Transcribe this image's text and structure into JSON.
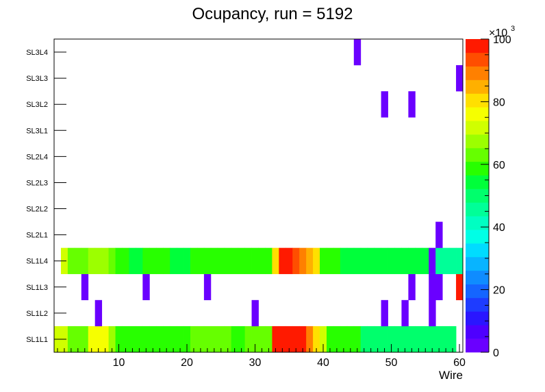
{
  "chart_data": {
    "type": "heatmap",
    "title": "Ocupancy, run = 5192",
    "xlabel": "Wire",
    "ylabel": "",
    "xlim": [
      0.5,
      60.5
    ],
    "x_ticks": [
      10,
      20,
      30,
      40,
      50,
      60
    ],
    "y_categories": [
      "SL1L1",
      "SL1L2",
      "SL1L3",
      "SL1L4",
      "SL2L1",
      "SL2L2",
      "SL2L3",
      "SL2L4",
      "SL3L1",
      "SL3L2",
      "SL3L3",
      "SL3L4"
    ],
    "z_range": [
      0,
      100000
    ],
    "z_exponent_label": "×10",
    "z_exponent_power": "3",
    "z_ticks": [
      0,
      20,
      40,
      60,
      80,
      100
    ],
    "palette": [
      "#6a00ff",
      "#4e00ff",
      "#2a16ff",
      "#1e3cff",
      "#1565ff",
      "#0f8cff",
      "#08b4ff",
      "#00dcff",
      "#00ffe6",
      "#00ffc2",
      "#00ff98",
      "#00ff6c",
      "#00ff3a",
      "#28ff00",
      "#66ff00",
      "#9cff00",
      "#d0ff00",
      "#f6ff00",
      "#ffe000",
      "#ffb000",
      "#ff8000",
      "#ff4e00",
      "#ff1a00"
    ],
    "rows": [
      {
        "layer": "SL1L1",
        "values": [
          70000,
          70000,
          63000,
          63000,
          63000,
          75000,
          75000,
          75000,
          66000,
          59000,
          57000,
          57000,
          57000,
          59000,
          59000,
          57000,
          57000,
          60000,
          60000,
          60000,
          65000,
          65000,
          65000,
          65000,
          65000,
          65000,
          60000,
          60000,
          65000,
          65000,
          65000,
          65000,
          100000,
          100000,
          100000,
          100000,
          96000,
          90000,
          82000,
          70000,
          60000,
          60000,
          60000,
          60000,
          60000,
          52000,
          52000,
          52000,
          52000,
          52000,
          52000,
          52000,
          48000,
          48000,
          48000,
          48000,
          48000,
          48000,
          48000,
          0
        ]
      },
      {
        "layer": "SL1L2",
        "values": [
          0,
          0,
          0,
          0,
          0,
          0,
          1000,
          0,
          0,
          0,
          0,
          0,
          0,
          0,
          0,
          0,
          0,
          0,
          0,
          0,
          0,
          0,
          0,
          0,
          0,
          0,
          0,
          0,
          0,
          1000,
          0,
          0,
          0,
          0,
          0,
          0,
          0,
          0,
          0,
          0,
          0,
          0,
          0,
          0,
          0,
          0,
          0,
          0,
          1000,
          0,
          0,
          1000,
          0,
          0,
          0,
          1000,
          0,
          0,
          0,
          0
        ]
      },
      {
        "layer": "SL1L3",
        "values": [
          0,
          0,
          0,
          0,
          1000,
          0,
          0,
          0,
          0,
          0,
          0,
          0,
          0,
          1000,
          0,
          0,
          0,
          0,
          0,
          0,
          0,
          0,
          1000,
          0,
          0,
          0,
          0,
          0,
          0,
          0,
          0,
          0,
          0,
          0,
          0,
          0,
          0,
          0,
          0,
          0,
          0,
          0,
          0,
          0,
          0,
          0,
          0,
          0,
          0,
          0,
          0,
          0,
          1000,
          0,
          0,
          1000,
          1000,
          0,
          0,
          100000
        ]
      },
      {
        "layer": "SL1L4",
        "values": [
          0,
          70000,
          63000,
          63000,
          63000,
          68000,
          68000,
          68000,
          63000,
          60000,
          60000,
          56000,
          56000,
          60000,
          60000,
          60000,
          60000,
          56000,
          56000,
          56000,
          60000,
          60000,
          60000,
          59000,
          59000,
          59000,
          59000,
          60000,
          60000,
          60000,
          60000,
          60000,
          80000,
          100000,
          100000,
          95000,
          90000,
          86000,
          79000,
          60000,
          60000,
          60000,
          55000,
          55000,
          55000,
          55000,
          53000,
          53000,
          53000,
          53000,
          53000,
          53000,
          53000,
          53000,
          53000,
          1000,
          47000,
          47000,
          47000,
          47000
        ]
      },
      {
        "layer": "SL2L1",
        "values": [
          0,
          0,
          0,
          0,
          0,
          0,
          0,
          0,
          0,
          0,
          0,
          0,
          0,
          0,
          0,
          0,
          0,
          0,
          0,
          0,
          0,
          0,
          0,
          0,
          0,
          0,
          0,
          0,
          0,
          0,
          0,
          0,
          0,
          0,
          0,
          0,
          0,
          0,
          0,
          0,
          0,
          0,
          0,
          0,
          0,
          0,
          0,
          0,
          0,
          0,
          0,
          0,
          0,
          0,
          0,
          0,
          1000,
          0,
          0,
          0
        ]
      },
      {
        "layer": "SL2L2",
        "values": [
          0,
          0,
          0,
          0,
          0,
          0,
          0,
          0,
          0,
          0,
          0,
          0,
          0,
          0,
          0,
          0,
          0,
          0,
          0,
          0,
          0,
          0,
          0,
          0,
          0,
          0,
          0,
          0,
          0,
          0,
          0,
          0,
          0,
          0,
          0,
          0,
          0,
          0,
          0,
          0,
          0,
          0,
          0,
          0,
          0,
          0,
          0,
          0,
          0,
          0,
          0,
          0,
          0,
          0,
          0,
          0,
          0,
          0,
          0,
          0
        ]
      },
      {
        "layer": "SL2L3",
        "values": [
          0,
          0,
          0,
          0,
          0,
          0,
          0,
          0,
          0,
          0,
          0,
          0,
          0,
          0,
          0,
          0,
          0,
          0,
          0,
          0,
          0,
          0,
          0,
          0,
          0,
          0,
          0,
          0,
          0,
          0,
          0,
          0,
          0,
          0,
          0,
          0,
          0,
          0,
          0,
          0,
          0,
          0,
          0,
          0,
          0,
          0,
          0,
          0,
          0,
          0,
          0,
          0,
          0,
          0,
          0,
          0,
          0,
          0,
          0,
          0
        ]
      },
      {
        "layer": "SL2L4",
        "values": [
          0,
          0,
          0,
          0,
          0,
          0,
          0,
          0,
          0,
          0,
          0,
          0,
          0,
          0,
          0,
          0,
          0,
          0,
          0,
          0,
          0,
          0,
          0,
          0,
          0,
          0,
          0,
          0,
          0,
          0,
          0,
          0,
          0,
          0,
          0,
          0,
          0,
          0,
          0,
          0,
          0,
          0,
          0,
          0,
          0,
          0,
          0,
          0,
          0,
          0,
          0,
          0,
          0,
          0,
          0,
          0,
          0,
          0,
          0,
          0
        ]
      },
      {
        "layer": "SL3L1",
        "values": [
          0,
          0,
          0,
          0,
          0,
          0,
          0,
          0,
          0,
          0,
          0,
          0,
          0,
          0,
          0,
          0,
          0,
          0,
          0,
          0,
          0,
          0,
          0,
          0,
          0,
          0,
          0,
          0,
          0,
          0,
          0,
          0,
          0,
          0,
          0,
          0,
          0,
          0,
          0,
          0,
          0,
          0,
          0,
          0,
          0,
          0,
          0,
          0,
          0,
          0,
          0,
          0,
          0,
          0,
          0,
          0,
          0,
          0,
          0,
          0
        ]
      },
      {
        "layer": "SL3L2",
        "values": [
          0,
          0,
          0,
          0,
          0,
          0,
          0,
          0,
          0,
          0,
          0,
          0,
          0,
          0,
          0,
          0,
          0,
          0,
          0,
          0,
          0,
          0,
          0,
          0,
          0,
          0,
          0,
          0,
          0,
          0,
          0,
          0,
          0,
          0,
          0,
          0,
          0,
          0,
          0,
          0,
          0,
          0,
          0,
          0,
          0,
          0,
          0,
          0,
          1000,
          0,
          0,
          0,
          1000,
          0,
          0,
          0,
          0,
          0,
          0,
          0
        ]
      },
      {
        "layer": "SL3L3",
        "values": [
          0,
          0,
          0,
          0,
          0,
          0,
          0,
          0,
          0,
          0,
          0,
          0,
          0,
          0,
          0,
          0,
          0,
          0,
          0,
          0,
          0,
          0,
          0,
          0,
          0,
          0,
          0,
          0,
          0,
          0,
          0,
          0,
          0,
          0,
          0,
          0,
          0,
          0,
          0,
          0,
          0,
          0,
          0,
          0,
          0,
          0,
          0,
          0,
          0,
          0,
          0,
          0,
          0,
          0,
          0,
          0,
          0,
          0,
          0,
          1000
        ]
      },
      {
        "layer": "SL3L4",
        "values": [
          0,
          0,
          0,
          0,
          0,
          0,
          0,
          0,
          0,
          0,
          0,
          0,
          0,
          0,
          0,
          0,
          0,
          0,
          0,
          0,
          0,
          0,
          0,
          0,
          0,
          0,
          0,
          0,
          0,
          0,
          0,
          0,
          0,
          0,
          0,
          0,
          0,
          0,
          0,
          0,
          0,
          0,
          0,
          0,
          1000,
          0,
          0,
          0,
          0,
          0,
          0,
          0,
          0,
          0,
          0,
          0,
          0,
          0,
          0,
          0
        ]
      }
    ]
  }
}
